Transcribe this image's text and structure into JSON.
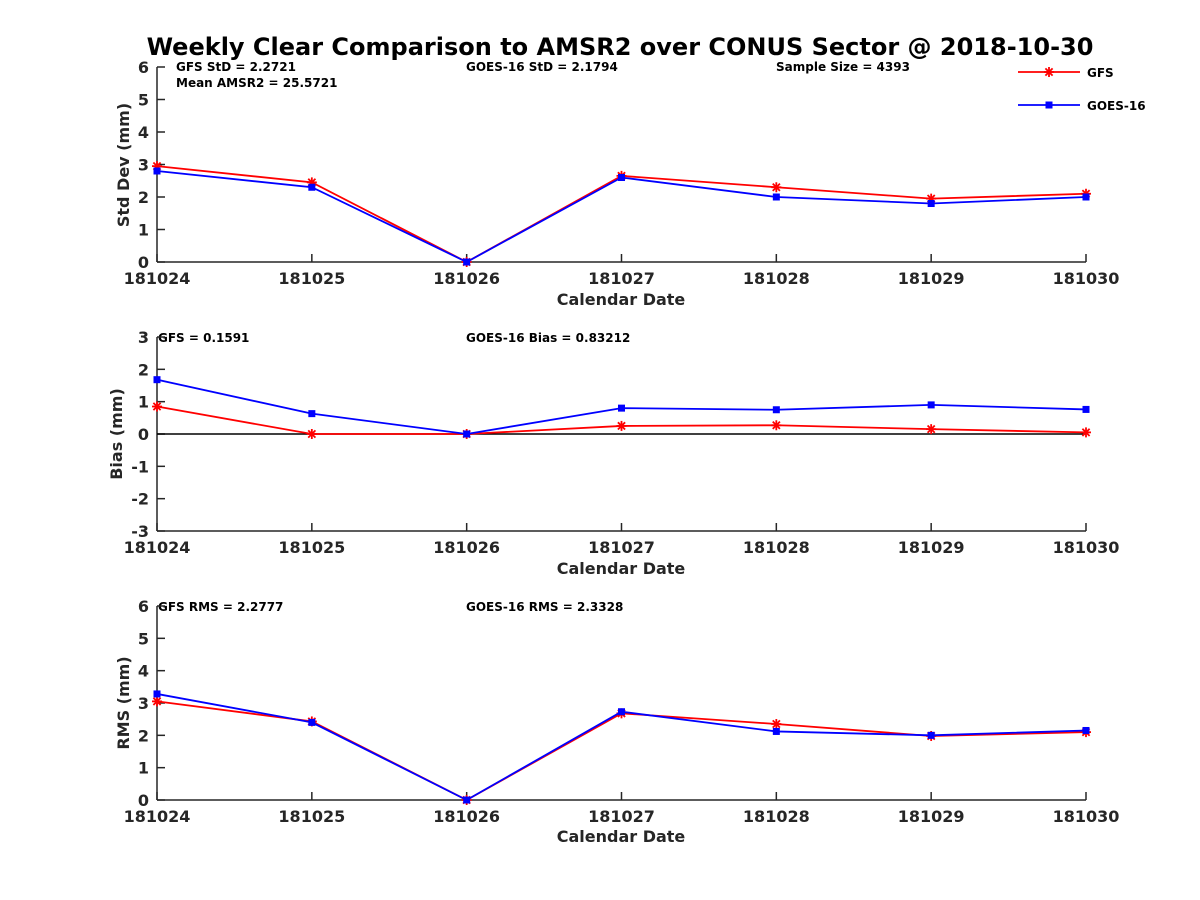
{
  "figure": {
    "title": "Weekly Clear Comparison to AMSR2 over CONUS Sector @ 2018-10-30"
  },
  "legend": {
    "placement": "top-right",
    "entries": [
      {
        "name": "GFS",
        "color": "#ff0000",
        "marker": "asterisk"
      },
      {
        "name": "GOES-16",
        "color": "#0000ff",
        "marker": "square"
      }
    ]
  },
  "chart_data": [
    {
      "type": "line",
      "xlabel": "Calendar Date",
      "ylabel": "Std Dev (mm)",
      "categories": [
        "181024",
        "181025",
        "181026",
        "181027",
        "181028",
        "181029",
        "181030"
      ],
      "ylim": [
        0,
        6
      ],
      "yticks": [
        "0",
        "1",
        "2",
        "3",
        "4",
        "5",
        "6"
      ],
      "grid": false,
      "annotations": [
        "GFS StD = 2.2721",
        "Mean AMSR2 = 25.5721",
        "GOES-16 StD = 2.1794",
        "Sample Size = 4393"
      ],
      "series": [
        {
          "name": "GFS",
          "color": "#ff0000",
          "marker": "asterisk",
          "values": [
            2.95,
            2.45,
            0.0,
            2.65,
            2.3,
            1.95,
            2.1
          ]
        },
        {
          "name": "GOES-16",
          "color": "#0000ff",
          "marker": "square",
          "values": [
            2.8,
            2.3,
            0.0,
            2.6,
            2.0,
            1.8,
            2.0
          ]
        }
      ]
    },
    {
      "type": "line",
      "xlabel": "Calendar Date",
      "ylabel": "Bias (mm)",
      "categories": [
        "181024",
        "181025",
        "181026",
        "181027",
        "181028",
        "181029",
        "181030"
      ],
      "ylim": [
        -3,
        3
      ],
      "yticks": [
        "-3",
        "-2",
        "-1",
        "0",
        "1",
        "2",
        "3"
      ],
      "zero_line": true,
      "grid": false,
      "annotations": [
        "GFS = 0.1591",
        "GOES-16 Bias  = 0.83212"
      ],
      "series": [
        {
          "name": "GFS",
          "color": "#ff0000",
          "marker": "asterisk",
          "values": [
            0.85,
            0.0,
            0.0,
            0.25,
            0.27,
            0.15,
            0.05
          ]
        },
        {
          "name": "GOES-16",
          "color": "#0000ff",
          "marker": "square",
          "values": [
            1.68,
            0.63,
            0.0,
            0.8,
            0.75,
            0.9,
            0.76
          ]
        }
      ]
    },
    {
      "type": "line",
      "xlabel": "Calendar Date",
      "ylabel": "RMS (mm)",
      "categories": [
        "181024",
        "181025",
        "181026",
        "181027",
        "181028",
        "181029",
        "181030"
      ],
      "ylim": [
        0,
        6
      ],
      "yticks": [
        "0",
        "1",
        "2",
        "3",
        "4",
        "5",
        "6"
      ],
      "grid": false,
      "annotations": [
        "GFS RMS = 2.2777",
        "GOES-16 RMS = 2.3328"
      ],
      "series": [
        {
          "name": "GFS",
          "color": "#ff0000",
          "marker": "asterisk",
          "values": [
            3.05,
            2.43,
            0.0,
            2.68,
            2.35,
            1.98,
            2.1
          ]
        },
        {
          "name": "GOES-16",
          "color": "#0000ff",
          "marker": "square",
          "values": [
            3.28,
            2.4,
            0.0,
            2.73,
            2.12,
            2.0,
            2.15
          ]
        }
      ]
    }
  ]
}
